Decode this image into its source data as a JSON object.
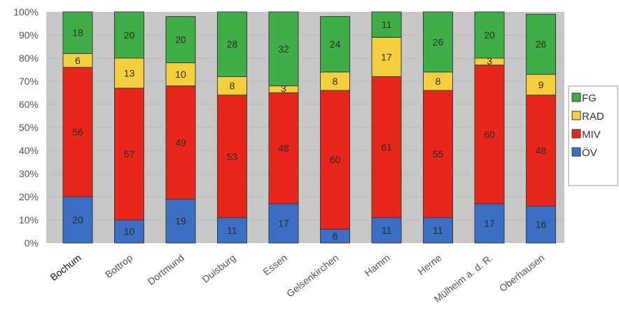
{
  "chart_data": {
    "type": "bar",
    "stacked": true,
    "percent": true,
    "title": "",
    "xlabel": "",
    "ylabel": "",
    "ylim": [
      0,
      100
    ],
    "y_tick_labels": [
      "0%",
      "10%",
      "20%",
      "30%",
      "40%",
      "50%",
      "60%",
      "70%",
      "80%",
      "90%",
      "100%"
    ],
    "categories": [
      "Bochum",
      "Bottrop",
      "Dortmund",
      "Duisburg",
      "Essen",
      "Gelsenkirchen",
      "Hamm",
      "Herne",
      "Mülheim a. d. R.",
      "Oberhausen"
    ],
    "series": [
      {
        "name": "ÖV",
        "color": "#3c6fc4",
        "values": [
          20,
          10,
          19,
          11,
          17,
          6,
          11,
          11,
          17,
          16
        ]
      },
      {
        "name": "MIV",
        "color": "#e8261c",
        "values": [
          56,
          57,
          49,
          53,
          48,
          60,
          61,
          55,
          60,
          48
        ]
      },
      {
        "name": "RAD",
        "color": "#f6cf3e",
        "values": [
          6,
          13,
          10,
          8,
          3,
          8,
          17,
          8,
          3,
          9
        ]
      },
      {
        "name": "FG",
        "color": "#3fae49",
        "values": [
          18,
          20,
          20,
          28,
          32,
          24,
          11,
          26,
          20,
          26
        ]
      }
    ],
    "legend_order": [
      "FG",
      "RAD",
      "MIV",
      "ÖV"
    ],
    "legend_position": "right",
    "grid": "horizontal"
  }
}
